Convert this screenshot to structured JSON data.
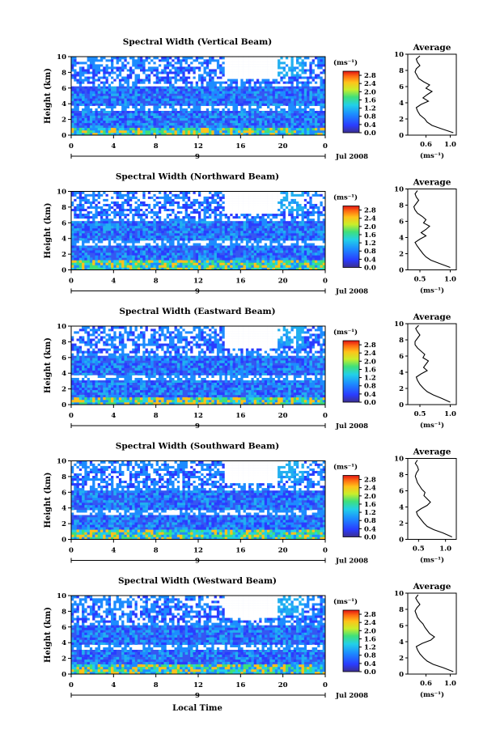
{
  "figure": {
    "xlabel": "Local Time",
    "date_label": "Jul 2008",
    "day_label": "9",
    "cbar_unit": "(ms⁻¹)",
    "avg_title": "Average",
    "avg_xlabel": "(ms⁻¹)"
  },
  "chart_data": [
    {
      "type": "heatmap",
      "title": "Spectral Width (Vertical Beam)",
      "ylabel": "Height (km)",
      "xlim": [
        0,
        24
      ],
      "ylim": [
        0,
        10
      ],
      "xticks": [
        "0",
        "4",
        "8",
        "12",
        "16",
        "20",
        "0"
      ],
      "yticks": [
        "0",
        "2",
        "4",
        "6",
        "8",
        "10"
      ],
      "colorbar": {
        "ticks": [
          "0.0",
          "0.4",
          "0.8",
          "1.2",
          "1.6",
          "2.0",
          "2.4",
          "2.8"
        ],
        "range": [
          0,
          3.0
        ]
      },
      "gap_hours": [],
      "bright_band": [
        0,
        1.0
      ],
      "profile": {
        "xticks": [
          "0.6",
          "1.0"
        ],
        "xlim": [
          0.3,
          1.1
        ],
        "y": [
          0.3,
          0.8,
          1.2,
          1.6,
          2.0,
          2.5,
          3.0,
          3.4,
          3.8,
          4.2,
          4.6,
          5.0,
          5.4,
          5.8,
          6.2,
          6.6,
          7.0,
          7.4,
          7.8,
          8.2,
          8.6,
          9.0,
          9.4,
          9.8
        ],
        "x": [
          1.05,
          0.85,
          0.7,
          0.62,
          0.58,
          0.5,
          0.46,
          0.44,
          0.52,
          0.64,
          0.55,
          0.62,
          0.7,
          0.6,
          0.66,
          0.56,
          0.48,
          0.45,
          0.42,
          0.44,
          0.5,
          0.46,
          0.44,
          0.5
        ]
      }
    },
    {
      "type": "heatmap",
      "title": "Spectral Width (Northward Beam)",
      "ylabel": "Height (km)",
      "xlim": [
        0,
        24
      ],
      "ylim": [
        0,
        10
      ],
      "xticks": [
        "0",
        "4",
        "8",
        "12",
        "16",
        "20",
        "0"
      ],
      "yticks": [
        "0",
        "2",
        "4",
        "6",
        "8",
        "10"
      ],
      "colorbar": {
        "ticks": [
          "0.0",
          "0.4",
          "0.8",
          "1.2",
          "1.6",
          "2.0",
          "2.4",
          "2.8"
        ],
        "range": [
          0,
          3.0
        ]
      },
      "gap_hours": [],
      "bright_band": [
        0,
        1.2
      ],
      "profile": {
        "xticks": [
          "0.5",
          "1.0"
        ],
        "xlim": [
          0.3,
          1.1
        ],
        "y": [
          0.3,
          0.8,
          1.2,
          1.6,
          2.0,
          2.5,
          3.0,
          3.4,
          3.8,
          4.2,
          4.6,
          5.0,
          5.4,
          5.8,
          6.2,
          6.6,
          7.0,
          7.4,
          7.8,
          8.2,
          8.6,
          9.0,
          9.4,
          9.8
        ],
        "x": [
          1.0,
          0.82,
          0.68,
          0.6,
          0.55,
          0.5,
          0.45,
          0.42,
          0.5,
          0.6,
          0.52,
          0.6,
          0.66,
          0.56,
          0.6,
          0.54,
          0.46,
          0.42,
          0.4,
          0.44,
          0.48,
          0.44,
          0.42,
          0.46
        ]
      }
    },
    {
      "type": "heatmap",
      "title": "Spectral Width (Eastward Beam)",
      "ylabel": "Height (km)",
      "xlim": [
        0,
        24
      ],
      "ylim": [
        0,
        10
      ],
      "xticks": [
        "0",
        "4",
        "8",
        "12",
        "16",
        "20",
        "0"
      ],
      "yticks": [
        "0",
        "2",
        "4",
        "6",
        "8",
        "10"
      ],
      "colorbar": {
        "ticks": [
          "0.0",
          "0.4",
          "0.8",
          "1.2",
          "1.6",
          "2.0",
          "2.4",
          "2.8"
        ],
        "range": [
          0,
          3.0
        ]
      },
      "gap_hours": [],
      "bright_band": [
        0,
        1.0
      ],
      "profile": {
        "xticks": [
          "0.5",
          "1.0"
        ],
        "xlim": [
          0.3,
          1.1
        ],
        "y": [
          0.3,
          0.8,
          1.2,
          1.6,
          2.0,
          2.5,
          3.0,
          3.4,
          3.8,
          4.2,
          4.6,
          5.0,
          5.4,
          5.8,
          6.2,
          6.6,
          7.0,
          7.4,
          7.8,
          8.2,
          8.6,
          9.0,
          9.4,
          9.8
        ],
        "x": [
          1.0,
          0.85,
          0.72,
          0.62,
          0.56,
          0.5,
          0.46,
          0.44,
          0.52,
          0.62,
          0.56,
          0.6,
          0.64,
          0.55,
          0.58,
          0.52,
          0.46,
          0.42,
          0.42,
          0.46,
          0.5,
          0.46,
          0.43,
          0.48
        ]
      }
    },
    {
      "type": "heatmap",
      "title": "Spectral Width (Southward Beam)",
      "ylabel": "Height (km)",
      "xlim": [
        0,
        24
      ],
      "ylim": [
        0,
        10
      ],
      "xticks": [
        "0",
        "4",
        "8",
        "12",
        "16",
        "20",
        "0"
      ],
      "yticks": [
        "0",
        "2",
        "4",
        "6",
        "8",
        "10"
      ],
      "colorbar": {
        "ticks": [
          "0.0",
          "0.4",
          "0.8",
          "1.2",
          "1.6",
          "2.0",
          "2.4",
          "2.8"
        ],
        "range": [
          0,
          3.0
        ]
      },
      "gap_hours": [],
      "bright_band": [
        0,
        1.2
      ],
      "profile": {
        "xticks": [
          "0.5",
          "1.0"
        ],
        "xlim": [
          0.3,
          1.2
        ],
        "y": [
          0.3,
          0.8,
          1.2,
          1.6,
          2.0,
          2.5,
          3.0,
          3.4,
          3.8,
          4.2,
          4.6,
          5.0,
          5.4,
          5.8,
          6.2,
          6.6,
          7.0,
          7.4,
          7.8,
          8.2,
          8.6,
          9.0,
          9.4,
          9.8
        ],
        "x": [
          1.12,
          0.95,
          0.78,
          0.66,
          0.6,
          0.54,
          0.48,
          0.46,
          0.55,
          0.66,
          0.72,
          0.66,
          0.6,
          0.62,
          0.56,
          0.52,
          0.48,
          0.46,
          0.44,
          0.46,
          0.5,
          0.48,
          0.44,
          0.48
        ]
      }
    },
    {
      "type": "heatmap",
      "title": "Spectral Width (Westward Beam)",
      "ylabel": "Height (km)",
      "xlim": [
        0,
        24
      ],
      "ylim": [
        0,
        10
      ],
      "xticks": [
        "0",
        "4",
        "8",
        "12",
        "16",
        "20",
        "0"
      ],
      "yticks": [
        "0",
        "2",
        "4",
        "6",
        "8",
        "10"
      ],
      "colorbar": {
        "ticks": [
          "0.0",
          "0.4",
          "0.8",
          "1.2",
          "1.6",
          "2.0",
          "2.4",
          "2.8"
        ],
        "range": [
          0,
          3.0
        ]
      },
      "gap_hours": [],
      "bright_band": [
        0,
        1.2
      ],
      "profile": {
        "xticks": [
          "0.6",
          "1.0"
        ],
        "xlim": [
          0.3,
          1.1
        ],
        "y": [
          0.3,
          0.8,
          1.2,
          1.6,
          2.0,
          2.5,
          3.0,
          3.4,
          3.8,
          4.2,
          4.6,
          5.0,
          5.4,
          5.8,
          6.2,
          6.6,
          7.0,
          7.4,
          7.8,
          8.2,
          8.6,
          9.0,
          9.4,
          9.8
        ],
        "x": [
          1.05,
          0.88,
          0.72,
          0.62,
          0.56,
          0.5,
          0.46,
          0.44,
          0.54,
          0.68,
          0.74,
          0.66,
          0.62,
          0.58,
          0.55,
          0.5,
          0.46,
          0.44,
          0.42,
          0.45,
          0.5,
          0.46,
          0.43,
          0.47
        ]
      }
    }
  ]
}
